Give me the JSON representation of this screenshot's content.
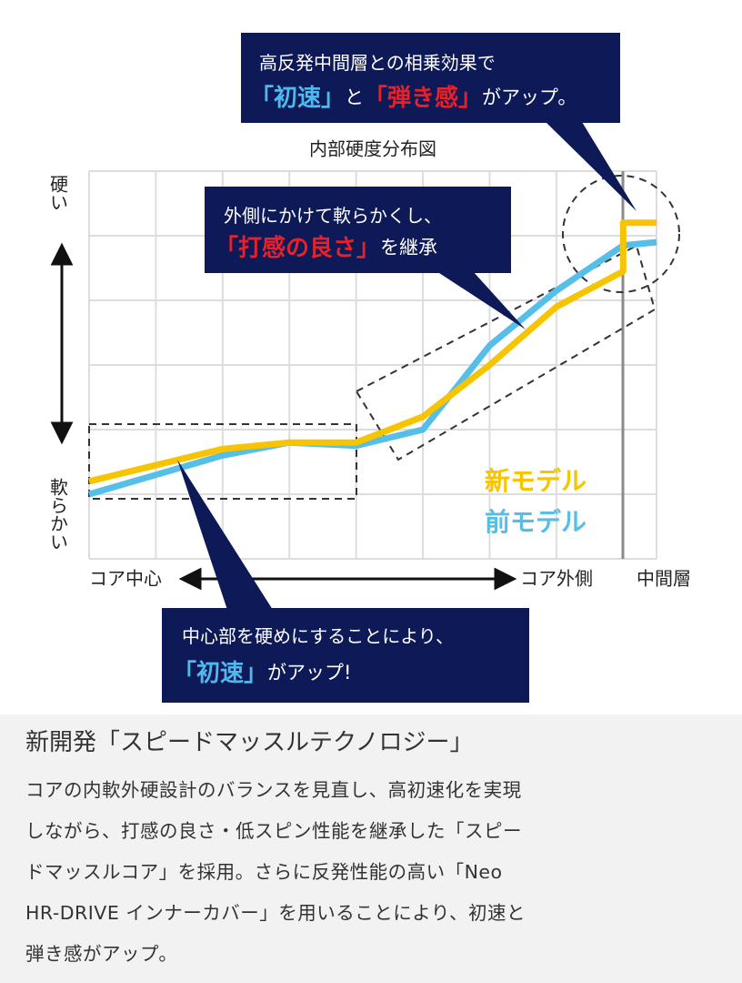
{
  "chart_data": {
    "type": "line",
    "title": "内部硬度分布図",
    "xlim": [
      0,
      8.5
    ],
    "ylim": [
      0,
      6
    ],
    "xticks": [
      0,
      1,
      2,
      3,
      4,
      5,
      6,
      7,
      8.5
    ],
    "yticks": [
      0,
      1,
      2,
      3,
      4,
      5,
      6
    ],
    "grid": true,
    "y_label_top": "硬い",
    "y_label_bottom": "軟らかい",
    "x_labels": [
      "コア中心",
      "コア外側",
      "中間層"
    ],
    "series": [
      {
        "name": "新モデル",
        "color": "#f6c400",
        "x": [
          0,
          1,
          2,
          3,
          4,
          5,
          6,
          7,
          8,
          8,
          8.5
        ],
        "values": [
          1.2,
          1.45,
          1.7,
          1.8,
          1.8,
          2.2,
          3.0,
          3.9,
          4.45,
          5.2,
          5.2
        ]
      },
      {
        "name": "前モデル",
        "color": "#55bfe8",
        "x": [
          0,
          1,
          2,
          3,
          4,
          5,
          6,
          7,
          8,
          8.5
        ],
        "values": [
          1.0,
          1.3,
          1.6,
          1.8,
          1.75,
          2.0,
          3.3,
          4.15,
          4.85,
          4.9
        ]
      }
    ],
    "annotations": [
      {
        "lines": [
          [
            {
              "text": "高反発中間層との相乗効果で"
            }
          ],
          [
            {
              "text": "「初速」",
              "color": "#4fb8ee"
            },
            {
              "text": "と"
            },
            {
              "text": "「弾き感」",
              "color": "#e8202a"
            },
            {
              "text": "がアップ。"
            }
          ]
        ]
      },
      {
        "lines": [
          [
            {
              "text": "外側にかけて軟らかくし、"
            }
          ],
          [
            {
              "text": "「打感の良さ」",
              "color": "#e8202a"
            },
            {
              "text": "を継承"
            }
          ]
        ]
      },
      {
        "lines": [
          [
            {
              "text": "中心部を硬めにすることにより、"
            }
          ],
          [
            {
              "text": "「初速」",
              "color": "#4fb8ee"
            },
            {
              "text": "がアップ!"
            }
          ]
        ]
      }
    ]
  },
  "description": {
    "heading": "新開発「スピードマッスルテクノロジー」",
    "lines": [
      "コアの内軟外硬設計のバランスを見直し、高初速化を実現",
      "しながら、打感の良さ・低スピン性能を継承した「スピー",
      "ドマッスルコア」を採用。さらに反発性能の高い「Neo",
      "HR-DRIVE インナーカバー」を用いることにより、初速と",
      "弾き感がアップ。"
    ]
  }
}
